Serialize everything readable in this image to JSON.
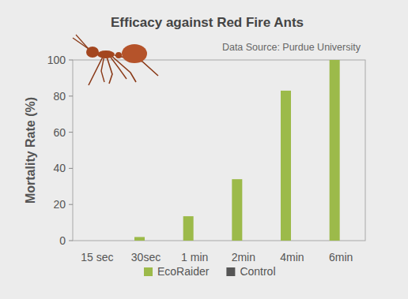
{
  "chart_data": {
    "type": "bar",
    "title": "Efficacy against Red Fire Ants",
    "subtitle": "Data Source: Purdue University",
    "y_label": "Mortality Rate (%)",
    "categories": [
      "15 sec",
      "30sec",
      "1 min",
      "2min",
      "4min",
      "6min"
    ],
    "series": [
      {
        "name": "EcoRaider",
        "color": "#9cba4a",
        "values": [
          0,
          2,
          13.5,
          34,
          83,
          100
        ]
      },
      {
        "name": "Control",
        "color": "#555555",
        "values": [
          0,
          0,
          0,
          0,
          0,
          0
        ]
      }
    ],
    "ylim": [
      0,
      100
    ],
    "yticks": [
      0,
      20,
      40,
      60,
      80,
      100
    ],
    "grid": false,
    "legend": "bottom"
  }
}
